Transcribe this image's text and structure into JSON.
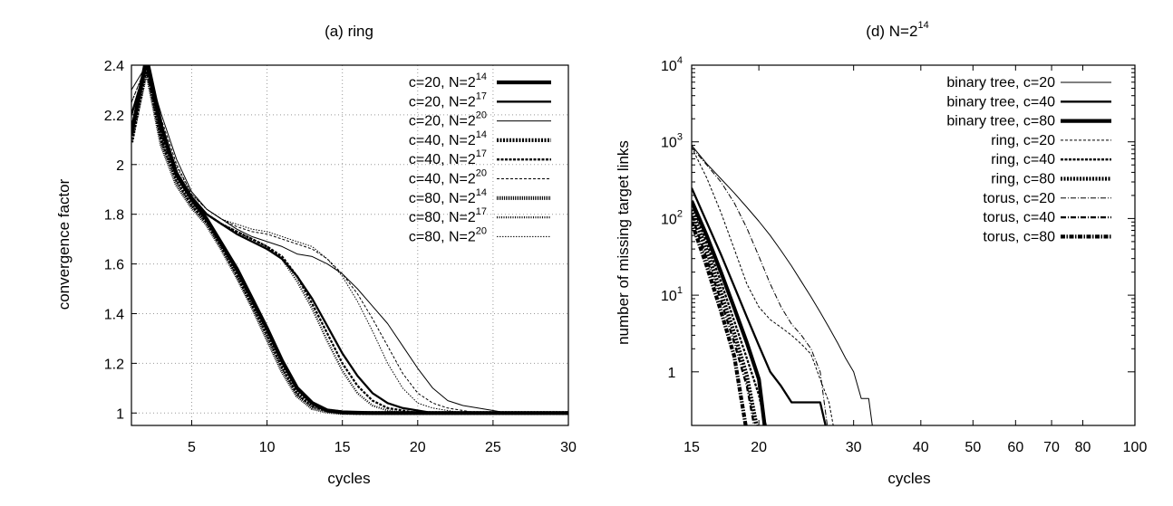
{
  "chart_data": [
    {
      "type": "line",
      "title": "(a) ring",
      "xlabel": "cycles",
      "ylabel": "convergence factor",
      "xlim": [
        1,
        30
      ],
      "ylim": [
        0.95,
        2.4
      ],
      "xticks": [
        5,
        10,
        15,
        20,
        25,
        30
      ],
      "yticks": [
        1,
        1.2,
        1.4,
        1.6,
        1.8,
        2,
        2.2,
        2.4
      ],
      "grid": true,
      "legend_position": "top-right",
      "series": [
        {
          "name": "c=20, N=2^14",
          "label_main": "c=20, N=2",
          "label_sup": "14",
          "x": [
            1,
            2,
            3,
            4,
            5,
            6,
            7,
            8,
            9,
            10,
            11,
            12,
            13,
            14,
            15,
            16,
            17,
            18,
            30
          ],
          "y": [
            2.12,
            2.43,
            2.15,
            1.96,
            1.86,
            1.78,
            1.68,
            1.58,
            1.46,
            1.34,
            1.21,
            1.1,
            1.04,
            1.01,
            1.003,
            1.001,
            1.0,
            1.0,
            1.0
          ]
        },
        {
          "name": "c=20, N=2^17",
          "label_main": "c=20, N=2",
          "label_sup": "17",
          "x": [
            1,
            2,
            3,
            4,
            5,
            6,
            7,
            8,
            9,
            10,
            11,
            12,
            13,
            14,
            15,
            16,
            17,
            18,
            19,
            20,
            21,
            22,
            23,
            24,
            30
          ],
          "y": [
            2.2,
            2.4,
            2.15,
            1.97,
            1.87,
            1.8,
            1.76,
            1.72,
            1.69,
            1.66,
            1.62,
            1.55,
            1.46,
            1.35,
            1.24,
            1.15,
            1.08,
            1.04,
            1.02,
            1.01,
            1.0,
            1.0,
            1.0,
            1.0,
            1.0
          ]
        },
        {
          "name": "c=20, N=2^20",
          "label_main": "c=20, N=2",
          "label_sup": "20",
          "x": [
            1,
            2,
            3,
            4,
            5,
            6,
            7,
            8,
            9,
            10,
            11,
            12,
            13,
            14,
            15,
            16,
            17,
            18,
            19,
            20,
            21,
            22,
            23,
            24,
            25,
            26,
            27,
            28,
            30
          ],
          "y": [
            2.3,
            2.4,
            2.2,
            2.02,
            1.89,
            1.82,
            1.78,
            1.74,
            1.71,
            1.69,
            1.67,
            1.64,
            1.63,
            1.6,
            1.56,
            1.5,
            1.43,
            1.36,
            1.27,
            1.18,
            1.1,
            1.05,
            1.03,
            1.02,
            1.01,
            1.0,
            1.0,
            1.0,
            1.0
          ]
        },
        {
          "name": "c=40, N=2^14",
          "label_main": "c=40, N=2",
          "label_sup": "14",
          "x": [
            1,
            2,
            3,
            4,
            5,
            6,
            7,
            8,
            9,
            10,
            11,
            12,
            13,
            14,
            15,
            16,
            17,
            18,
            30
          ],
          "y": [
            2.09,
            2.4,
            2.1,
            1.94,
            1.84,
            1.77,
            1.67,
            1.56,
            1.44,
            1.32,
            1.19,
            1.08,
            1.03,
            1.01,
            1.002,
            1.0,
            1.0,
            1.0,
            1.0
          ]
        },
        {
          "name": "c=40, N=2^17",
          "label_main": "c=40, N=2",
          "label_sup": "17",
          "x": [
            1,
            2,
            3,
            4,
            5,
            6,
            7,
            8,
            9,
            10,
            11,
            12,
            13,
            14,
            15,
            16,
            17,
            18,
            19,
            20,
            21,
            22,
            23,
            30
          ],
          "y": [
            2.15,
            2.4,
            2.12,
            1.96,
            1.86,
            1.8,
            1.76,
            1.73,
            1.7,
            1.67,
            1.63,
            1.55,
            1.44,
            1.32,
            1.2,
            1.11,
            1.05,
            1.02,
            1.01,
            1.0,
            1.0,
            1.0,
            1.0,
            1.0
          ]
        },
        {
          "name": "c=40, N=2^20",
          "label_main": "c=40, N=2",
          "label_sup": "20",
          "x": [
            1,
            2,
            3,
            4,
            5,
            6,
            7,
            8,
            9,
            10,
            11,
            12,
            13,
            14,
            15,
            16,
            17,
            18,
            19,
            20,
            21,
            22,
            23,
            24,
            25,
            26,
            30
          ],
          "y": [
            2.25,
            2.4,
            2.18,
            2.0,
            1.88,
            1.82,
            1.78,
            1.75,
            1.73,
            1.72,
            1.7,
            1.68,
            1.66,
            1.62,
            1.56,
            1.48,
            1.38,
            1.27,
            1.16,
            1.08,
            1.04,
            1.02,
            1.01,
            1.0,
            1.0,
            1.0,
            1.0
          ]
        },
        {
          "name": "c=80, N=2^14",
          "label_main": "c=80, N=2",
          "label_sup": "14",
          "x": [
            1,
            2,
            3,
            4,
            5,
            6,
            7,
            8,
            9,
            10,
            11,
            12,
            13,
            14,
            15,
            16,
            17,
            30
          ],
          "y": [
            2.1,
            2.38,
            2.08,
            1.92,
            1.83,
            1.76,
            1.66,
            1.55,
            1.43,
            1.3,
            1.17,
            1.07,
            1.02,
            1.005,
            1.0,
            1.0,
            1.0,
            1.0
          ]
        },
        {
          "name": "c=80, N=2^17",
          "label_main": "c=80, N=2",
          "label_sup": "17",
          "x": [
            1,
            2,
            3,
            4,
            5,
            6,
            7,
            8,
            9,
            10,
            11,
            12,
            13,
            14,
            15,
            16,
            17,
            18,
            19,
            20,
            21,
            22,
            30
          ],
          "y": [
            2.15,
            2.38,
            2.1,
            1.95,
            1.86,
            1.8,
            1.76,
            1.73,
            1.7,
            1.67,
            1.62,
            1.53,
            1.42,
            1.29,
            1.17,
            1.08,
            1.03,
            1.01,
            1.0,
            1.0,
            1.0,
            1.0,
            1.0
          ]
        },
        {
          "name": "c=80, N=2^20",
          "label_main": "c=80, N=2",
          "label_sup": "20",
          "x": [
            1,
            2,
            3,
            4,
            5,
            6,
            7,
            8,
            9,
            10,
            11,
            12,
            13,
            14,
            15,
            16,
            17,
            18,
            19,
            20,
            21,
            22,
            23,
            24,
            25,
            30
          ],
          "y": [
            2.25,
            2.4,
            2.15,
            1.99,
            1.88,
            1.82,
            1.78,
            1.76,
            1.74,
            1.73,
            1.71,
            1.69,
            1.67,
            1.62,
            1.55,
            1.45,
            1.33,
            1.2,
            1.1,
            1.04,
            1.02,
            1.01,
            1.0,
            1.0,
            1.0,
            1.0
          ]
        }
      ]
    },
    {
      "type": "line",
      "title": "(d) N=2^14",
      "title_main": "(d) N=2",
      "title_sup": "14",
      "xlabel": "cycles",
      "ylabel": "number of missing target links",
      "xscale": "log",
      "yscale": "log",
      "xlim": [
        15,
        100
      ],
      "ylim": [
        0.2,
        10000
      ],
      "xticks": [
        15,
        20,
        30,
        40,
        50,
        60,
        70,
        80,
        100
      ],
      "yticks": [
        {
          "value": 1,
          "main": "1",
          "sup": ""
        },
        {
          "value": 10,
          "main": "10",
          "sup": "1"
        },
        {
          "value": 100,
          "main": "10",
          "sup": "2"
        },
        {
          "value": 1000,
          "main": "10",
          "sup": "3"
        },
        {
          "value": 10000,
          "main": "10",
          "sup": "4"
        }
      ],
      "grid": false,
      "legend_position": "top-right",
      "series": [
        {
          "name": "binary tree, c=20",
          "x": [
            15,
            16,
            17,
            18,
            19,
            20,
            21,
            22,
            23,
            24,
            25,
            26,
            27,
            28,
            29,
            30,
            31,
            32,
            32.5
          ],
          "y": [
            900,
            520,
            330,
            215,
            140,
            92,
            60,
            38,
            24,
            15,
            9.5,
            6,
            3.8,
            2.4,
            1.5,
            1,
            0.45,
            0.45,
            0.2
          ]
        },
        {
          "name": "binary tree, c=40",
          "x": [
            15,
            16,
            17,
            18,
            19,
            20,
            21,
            22,
            23,
            24,
            25,
            26,
            26.6
          ],
          "y": [
            250,
            90,
            34,
            13,
            5.2,
            2.2,
            1.0,
            0.65,
            0.4,
            0.4,
            0.4,
            0.4,
            0.2
          ]
        },
        {
          "name": "binary tree, c=80",
          "x": [
            15,
            16,
            17,
            18,
            19,
            20,
            20.5
          ],
          "y": [
            170,
            60,
            20,
            6.8,
            2.4,
            0.8,
            0.2
          ]
        },
        {
          "name": "ring, c=20",
          "x": [
            15,
            16,
            17,
            18,
            19,
            20,
            21,
            22,
            23,
            24,
            25,
            26,
            27,
            27.5
          ],
          "y": [
            850,
            340,
            120,
            40,
            14,
            7,
            4.8,
            3.8,
            3.0,
            2.3,
            1.7,
            0.8,
            0.4,
            0.2
          ]
        },
        {
          "name": "ring, c=40",
          "x": [
            15,
            16,
            17,
            18,
            19,
            20,
            20.6
          ],
          "y": [
            160,
            48,
            15,
            4.6,
            1.5,
            0.5,
            0.2
          ]
        },
        {
          "name": "ring, c=80",
          "x": [
            15,
            16,
            17,
            18,
            19,
            19.8
          ],
          "y": [
            130,
            38,
            11,
            3.2,
            0.9,
            0.2
          ]
        },
        {
          "name": "torus, c=20",
          "x": [
            15,
            16,
            17,
            18,
            19,
            20,
            21,
            22,
            23,
            24,
            25,
            26,
            26.8
          ],
          "y": [
            850,
            500,
            300,
            160,
            75,
            32,
            14,
            7,
            4.2,
            3.0,
            2.0,
            1.0,
            0.2
          ]
        },
        {
          "name": "torus, c=40",
          "x": [
            15,
            16,
            17,
            18,
            19,
            19.6
          ],
          "y": [
            110,
            30,
            8.5,
            2.4,
            0.65,
            0.2
          ]
        },
        {
          "name": "torus, c=80",
          "x": [
            15,
            16,
            17,
            18,
            18.9
          ],
          "y": [
            90,
            24,
            6.2,
            1.6,
            0.2
          ]
        }
      ]
    }
  ]
}
